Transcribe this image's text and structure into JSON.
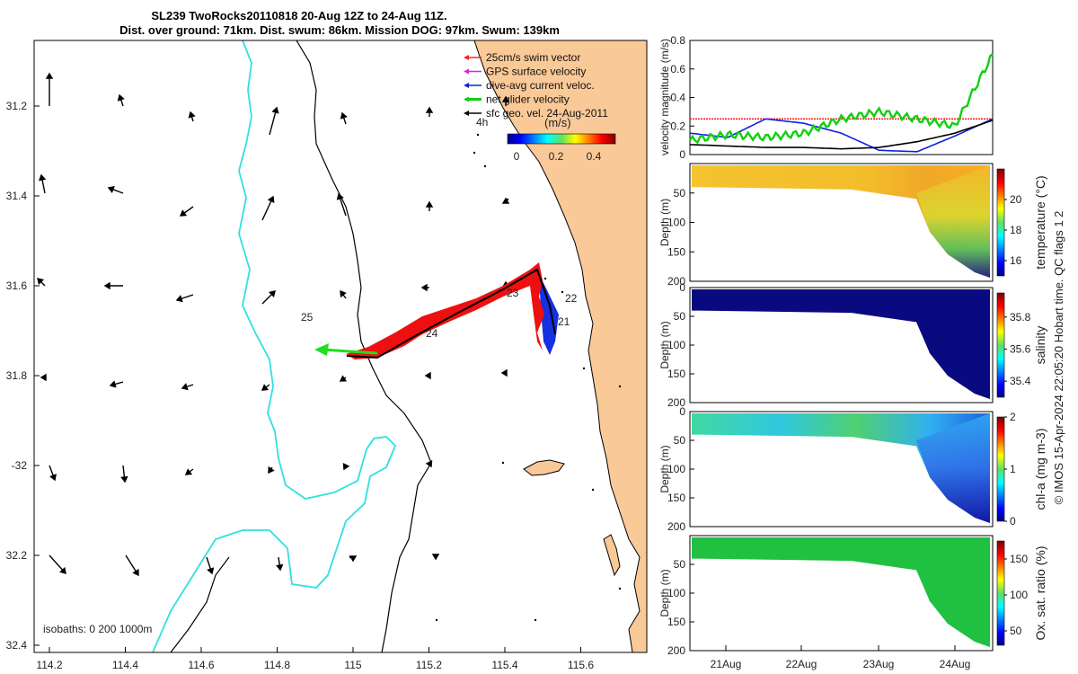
{
  "title": {
    "line1": "SL239 TwoRocks20110818 20-Aug 12Z to 24-Aug 11Z.",
    "line2": "Dist. over ground: 71km. Dist. swum: 86km. Mission DOG: 97km. Swum: 139km"
  },
  "map": {
    "lon_ticks": [
      "114.2",
      "114.4",
      "114.6",
      "114.8",
      "115",
      "115.2",
      "115.4",
      "115.6"
    ],
    "lat_ticks": [
      "31.2",
      "31.4",
      "31.6",
      "31.8",
      "-32",
      "32.2",
      "32.4"
    ],
    "isobaths_label": "isobaths: 0   200  1000m",
    "track_day_labels": [
      "25",
      "24",
      "23",
      "22",
      "21"
    ],
    "hours_label": "4h",
    "colorbar": {
      "unit": "(m/s)",
      "ticks": [
        "0",
        "0.2",
        "0.4"
      ]
    },
    "legend": [
      {
        "label": "25cm/s swim vector",
        "color": "#ff2020"
      },
      {
        "label": "GPS surface velocity",
        "color": "#e020e0"
      },
      {
        "label": "dive-avg current veloc.",
        "color": "#1020e0"
      },
      {
        "label": "net glider velocity",
        "color": "#10d010"
      },
      {
        "label": "sfc geo. vel. 24-Aug-2011",
        "color": "#000000"
      }
    ]
  },
  "chart_data": [
    {
      "type": "line",
      "ylabel": "velocity magnitude (m/s)",
      "ylim": [
        0,
        0.8
      ],
      "yticks": [
        "0",
        "0.2",
        "0.4",
        "0.6",
        "0.8"
      ],
      "x_start": "20-Aug 12Z",
      "x_end": "24-Aug 11Z",
      "series": [
        {
          "name": "25cm/s swim vector",
          "color": "#ff2020",
          "values": [
            0.25,
            0.25,
            0.25,
            0.25,
            0.25,
            0.25,
            0.25,
            0.25,
            0.25
          ]
        },
        {
          "name": "dive-avg current veloc.",
          "color": "#1020e0",
          "values": [
            0.15,
            0.12,
            0.25,
            0.22,
            0.15,
            0.03,
            0.02,
            0.13,
            0.25
          ]
        },
        {
          "name": "net glider velocity",
          "color": "#10d010",
          "values": [
            0.1,
            0.14,
            0.12,
            0.15,
            0.25,
            0.3,
            0.25,
            0.2,
            0.7
          ]
        },
        {
          "name": "sfc geo. vel.",
          "color": "#000000",
          "values": [
            0.07,
            0.06,
            0.05,
            0.05,
            0.04,
            0.05,
            0.09,
            0.15,
            0.24
          ]
        }
      ]
    },
    {
      "type": "heatmap",
      "ylabel": "Depth (m)",
      "clabel": "temperature (°C)",
      "yticks": [
        "50",
        "100",
        "150",
        "200"
      ],
      "cticks": [
        "20",
        "18",
        "16"
      ],
      "crange": [
        15,
        22
      ]
    },
    {
      "type": "heatmap",
      "ylabel": "Depth (m)",
      "clabel": "salinity",
      "yticks": [
        "0",
        "50",
        "100",
        "150",
        "200"
      ],
      "cticks": [
        "35.8",
        "35.6",
        "35.4"
      ],
      "crange": [
        35.3,
        35.95
      ]
    },
    {
      "type": "heatmap",
      "ylabel": "Depth (m)",
      "clabel": "chl-a (mg m-3)",
      "yticks": [
        "0",
        "50",
        "100",
        "150",
        "200"
      ],
      "cticks": [
        "2",
        "1",
        "0"
      ],
      "crange": [
        0,
        2
      ]
    },
    {
      "type": "heatmap",
      "ylabel": "Depth (m)",
      "clabel": "Ox. sat. ratio (%)",
      "yticks": [
        "50",
        "100",
        "150",
        "200"
      ],
      "cticks": [
        "150",
        "100",
        "50"
      ],
      "crange": [
        30,
        175
      ]
    }
  ],
  "x_day_ticks": [
    "21Aug",
    "22Aug",
    "23Aug",
    "24Aug"
  ],
  "credit": "© IMOS 15-Apr-2024 22:05:20 Hobart time. QC flags 1  2"
}
